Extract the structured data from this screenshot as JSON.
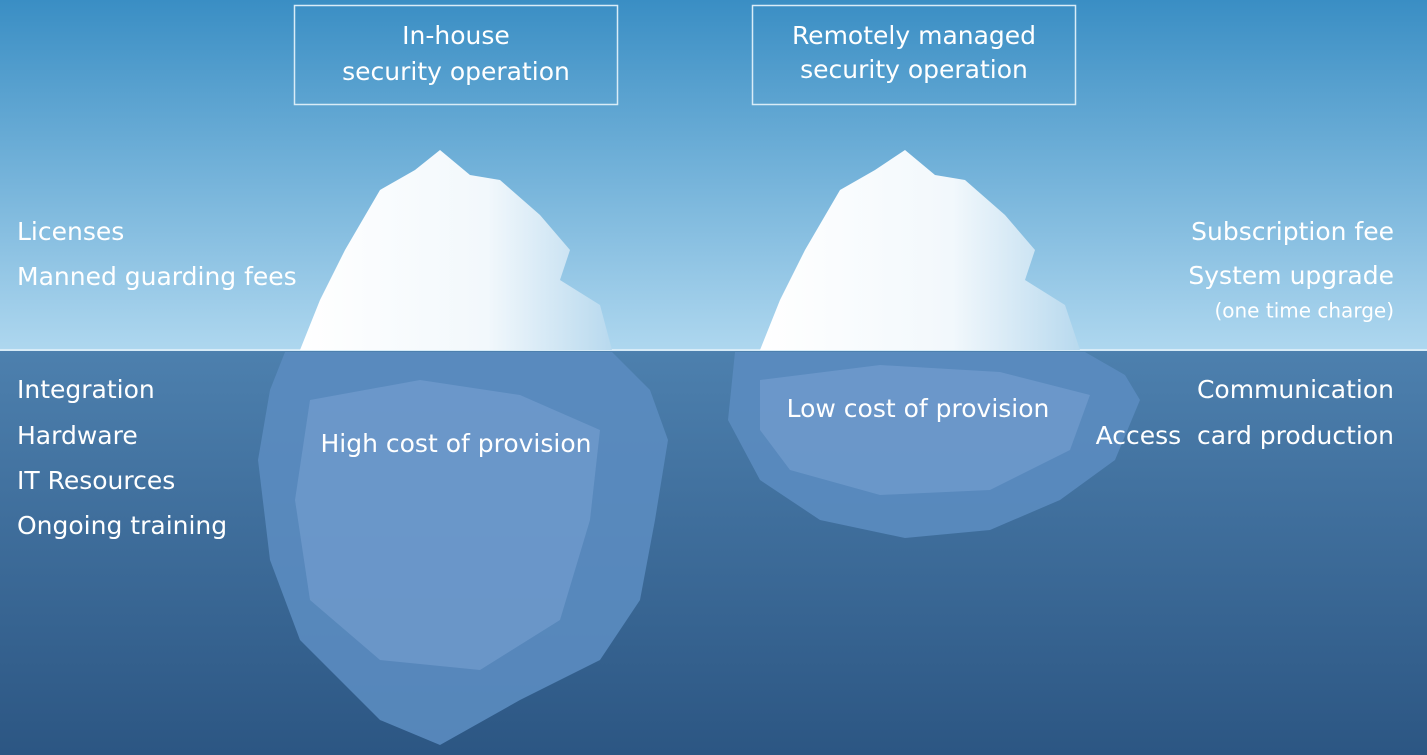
{
  "headers": {
    "left": [
      "In-house",
      "security operation"
    ],
    "right": [
      "Remotely managed",
      "security operation"
    ]
  },
  "left_column": {
    "above": [
      "Licenses",
      "Manned guarding fees"
    ],
    "below": [
      "Integration",
      "Hardware",
      "IT Resources",
      "Ongoing training"
    ]
  },
  "icebergs": {
    "left": "High cost of provision",
    "right": "Low cost of provision"
  },
  "right_column": {
    "above": [
      "Subscription fee",
      "System upgrade",
      "(one time charge)"
    ],
    "below": [
      "Communication",
      "Access  card production"
    ]
  }
}
